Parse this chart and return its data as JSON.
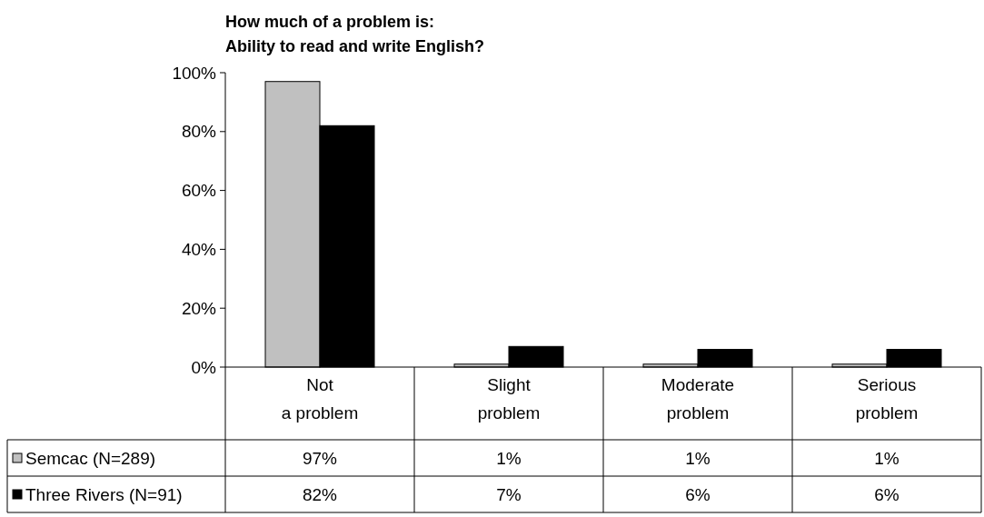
{
  "chart_data": {
    "type": "bar",
    "title": "How much of a problem is:",
    "subtitle": "Ability to read and write English?",
    "categories": [
      "Not a problem",
      "Slight problem",
      "Moderate problem",
      "Serious problem"
    ],
    "series": [
      {
        "name": "Semcac (N=289)",
        "color": "#c0c0c0",
        "values": [
          97,
          1,
          1,
          1
        ],
        "value_labels": [
          "97%",
          "1%",
          "1%",
          "1%"
        ]
      },
      {
        "name": "Three Rivers (N=91)",
        "color": "#000000",
        "values": [
          82,
          7,
          6,
          6
        ],
        "value_labels": [
          "82%",
          "7%",
          "6%",
          "6%"
        ]
      }
    ],
    "ylim": [
      0,
      100
    ],
    "yticks": [
      {
        "value": 0,
        "label": "0%"
      },
      {
        "value": 20,
        "label": "20%"
      },
      {
        "value": 40,
        "label": "40%"
      },
      {
        "value": 60,
        "label": "60%"
      },
      {
        "value": 80,
        "label": "80%"
      },
      {
        "value": 100,
        "label": "100%"
      }
    ],
    "legend": "bottom left",
    "grid": false
  }
}
